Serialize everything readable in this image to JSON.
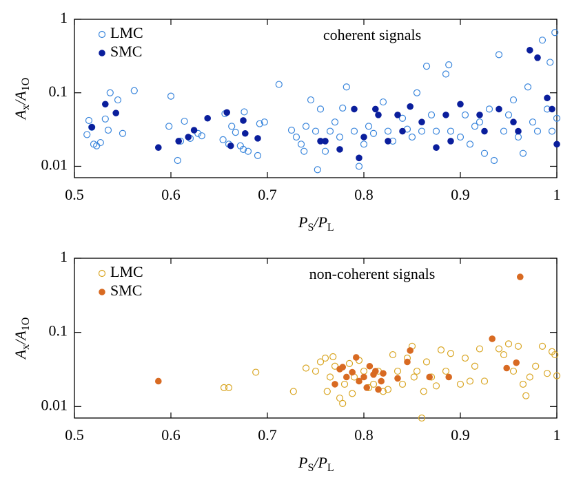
{
  "chart_data": [
    {
      "type": "scatter",
      "annotation": "coherent signals",
      "x_label": [
        "P",
        "S",
        "/P",
        "L"
      ],
      "y_label": [
        "A",
        "x",
        "/A",
        "1O"
      ],
      "xlim": [
        0.5,
        1
      ],
      "ylim": [
        0.007,
        1
      ],
      "xticks": [
        0.5,
        0.6,
        0.7,
        0.8,
        0.9,
        1
      ],
      "yticks": [
        0.01,
        0.1,
        1
      ],
      "log_y": true,
      "legend": "upper left",
      "series": [
        {
          "name": "LMC",
          "color": "#3a86dc",
          "marker": "open",
          "x": [
            0.513,
            0.515,
            0.518,
            0.52,
            0.523,
            0.527,
            0.532,
            0.535,
            0.537,
            0.545,
            0.55,
            0.562,
            0.598,
            0.6,
            0.607,
            0.61,
            0.614,
            0.62,
            0.628,
            0.632,
            0.654,
            0.656,
            0.66,
            0.663,
            0.667,
            0.672,
            0.675,
            0.676,
            0.68,
            0.69,
            0.692,
            0.697,
            0.712,
            0.725,
            0.73,
            0.735,
            0.738,
            0.74,
            0.745,
            0.75,
            0.752,
            0.755,
            0.76,
            0.765,
            0.77,
            0.775,
            0.778,
            0.782,
            0.79,
            0.795,
            0.8,
            0.805,
            0.81,
            0.82,
            0.825,
            0.83,
            0.84,
            0.845,
            0.85,
            0.855,
            0.86,
            0.865,
            0.87,
            0.875,
            0.885,
            0.888,
            0.89,
            0.9,
            0.905,
            0.91,
            0.915,
            0.92,
            0.925,
            0.93,
            0.935,
            0.94,
            0.945,
            0.95,
            0.955,
            0.96,
            0.965,
            0.97,
            0.975,
            0.98,
            0.985,
            0.99,
            0.993,
            0.995,
            0.998,
            1.0
          ],
          "values": [
            0.027,
            0.042,
            0.034,
            0.02,
            0.019,
            0.021,
            0.044,
            0.031,
            0.1,
            0.08,
            0.028,
            0.107,
            0.035,
            0.09,
            0.012,
            0.022,
            0.041,
            0.024,
            0.028,
            0.026,
            0.023,
            0.052,
            0.02,
            0.035,
            0.029,
            0.019,
            0.017,
            0.055,
            0.016,
            0.014,
            0.038,
            0.04,
            0.13,
            0.031,
            0.025,
            0.02,
            0.016,
            0.035,
            0.08,
            0.03,
            0.009,
            0.06,
            0.016,
            0.03,
            0.04,
            0.025,
            0.062,
            0.12,
            0.03,
            0.01,
            0.02,
            0.035,
            0.028,
            0.075,
            0.03,
            0.022,
            0.045,
            0.032,
            0.025,
            0.1,
            0.03,
            0.23,
            0.05,
            0.03,
            0.18,
            0.24,
            0.03,
            0.025,
            0.05,
            0.02,
            0.035,
            0.04,
            0.015,
            0.06,
            0.012,
            0.33,
            0.03,
            0.05,
            0.08,
            0.025,
            0.015,
            0.12,
            0.04,
            0.03,
            0.52,
            0.06,
            0.26,
            0.03,
            0.66,
            0.045
          ]
        },
        {
          "name": "SMC",
          "color": "#0a1e9c",
          "marker": "filled",
          "x": [
            0.518,
            0.532,
            0.543,
            0.587,
            0.608,
            0.618,
            0.624,
            0.638,
            0.658,
            0.662,
            0.675,
            0.677,
            0.69,
            0.755,
            0.76,
            0.775,
            0.79,
            0.795,
            0.8,
            0.812,
            0.815,
            0.825,
            0.835,
            0.84,
            0.848,
            0.86,
            0.875,
            0.885,
            0.89,
            0.9,
            0.92,
            0.925,
            0.94,
            0.955,
            0.96,
            0.972,
            0.98,
            0.99,
            0.995,
            1.0
          ],
          "values": [
            0.034,
            0.07,
            0.053,
            0.018,
            0.022,
            0.025,
            0.031,
            0.045,
            0.054,
            0.019,
            0.042,
            0.028,
            0.024,
            0.022,
            0.022,
            0.017,
            0.06,
            0.013,
            0.025,
            0.06,
            0.05,
            0.022,
            0.05,
            0.03,
            0.065,
            0.04,
            0.018,
            0.05,
            0.022,
            0.07,
            0.05,
            0.03,
            0.06,
            0.04,
            0.03,
            0.38,
            0.3,
            0.085,
            0.06,
            0.02
          ]
        }
      ]
    },
    {
      "type": "scatter",
      "annotation": "non-coherent signals",
      "x_label": [
        "P",
        "S",
        "/P",
        "L"
      ],
      "y_label": [
        "A",
        "x",
        "/A",
        "1O"
      ],
      "xlim": [
        0.5,
        1
      ],
      "ylim": [
        0.007,
        1
      ],
      "xticks": [
        0.5,
        0.6,
        0.7,
        0.8,
        0.9,
        1
      ],
      "yticks": [
        0.01,
        0.1,
        1
      ],
      "log_y": true,
      "legend": "upper left",
      "series": [
        {
          "name": "LMC",
          "color": "#d9a624",
          "marker": "open",
          "x": [
            0.655,
            0.66,
            0.688,
            0.727,
            0.74,
            0.75,
            0.755,
            0.76,
            0.762,
            0.765,
            0.768,
            0.77,
            0.775,
            0.778,
            0.78,
            0.785,
            0.788,
            0.79,
            0.795,
            0.8,
            0.805,
            0.81,
            0.815,
            0.82,
            0.825,
            0.83,
            0.835,
            0.84,
            0.845,
            0.85,
            0.852,
            0.855,
            0.86,
            0.862,
            0.865,
            0.87,
            0.875,
            0.88,
            0.885,
            0.89,
            0.9,
            0.905,
            0.91,
            0.915,
            0.92,
            0.925,
            0.94,
            0.945,
            0.95,
            0.955,
            0.96,
            0.965,
            0.968,
            0.972,
            0.978,
            0.985,
            0.99,
            0.995,
            0.998,
            1.0
          ],
          "values": [
            0.018,
            0.018,
            0.029,
            0.016,
            0.033,
            0.03,
            0.04,
            0.045,
            0.016,
            0.025,
            0.047,
            0.035,
            0.013,
            0.011,
            0.02,
            0.038,
            0.015,
            0.025,
            0.042,
            0.03,
            0.018,
            0.02,
            0.03,
            0.016,
            0.017,
            0.05,
            0.03,
            0.02,
            0.045,
            0.065,
            0.025,
            0.03,
            0.007,
            0.016,
            0.04,
            0.025,
            0.019,
            0.058,
            0.03,
            0.052,
            0.02,
            0.045,
            0.022,
            0.035,
            0.06,
            0.022,
            0.06,
            0.05,
            0.07,
            0.03,
            0.065,
            0.02,
            0.014,
            0.025,
            0.035,
            0.065,
            0.028,
            0.055,
            0.05,
            0.026
          ]
        },
        {
          "name": "SMC",
          "color": "#d86a22",
          "marker": "filled",
          "x": [
            0.587,
            0.77,
            0.775,
            0.778,
            0.782,
            0.788,
            0.792,
            0.795,
            0.8,
            0.803,
            0.806,
            0.81,
            0.812,
            0.815,
            0.818,
            0.82,
            0.835,
            0.845,
            0.848,
            0.868,
            0.888,
            0.933,
            0.948,
            0.958,
            0.962
          ],
          "values": [
            0.022,
            0.02,
            0.032,
            0.034,
            0.025,
            0.029,
            0.046,
            0.022,
            0.025,
            0.018,
            0.035,
            0.027,
            0.03,
            0.017,
            0.022,
            0.028,
            0.024,
            0.04,
            0.057,
            0.025,
            0.025,
            0.082,
            0.033,
            0.039,
            0.56
          ]
        }
      ]
    }
  ]
}
